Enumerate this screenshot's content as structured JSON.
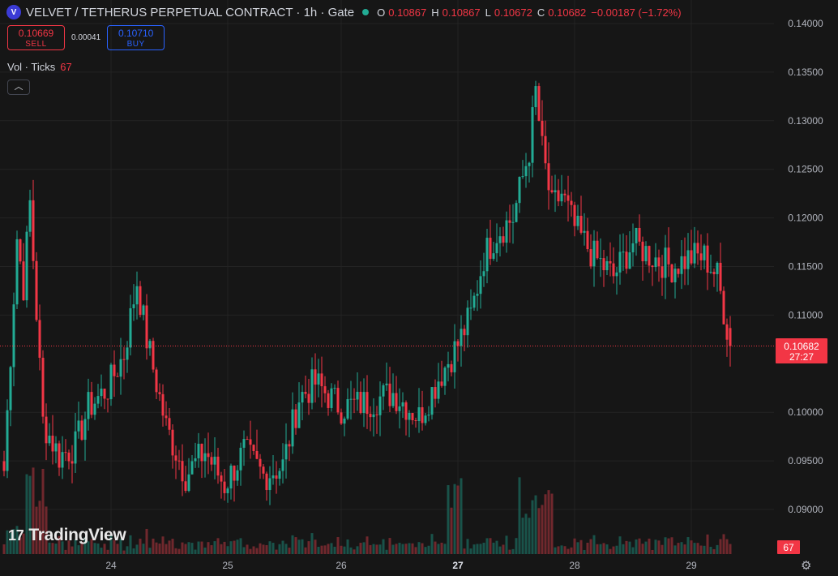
{
  "header": {
    "logo_text": "V",
    "title": "VELVET / TETHERUS PERPETUAL CONTRACT · 1h · Gate",
    "ohlc": [
      {
        "key": "O",
        "value": "0.10867"
      },
      {
        "key": "H",
        "value": "0.10867"
      },
      {
        "key": "L",
        "value": "0.10672"
      },
      {
        "key": "C",
        "value": "0.10682"
      }
    ],
    "change": "−0.00187 (−1.72%)"
  },
  "trade": {
    "sell_price": "0.10669",
    "sell_label": "SELL",
    "spread": "0.00041",
    "buy_price": "0.10710",
    "buy_label": "BUY"
  },
  "volume_legend": {
    "label": "Vol · Ticks",
    "value": "67"
  },
  "collapse_icon": "chevron-up-icon",
  "brand": {
    "mark": "17",
    "name": "TradingView"
  },
  "settings_icon": "gear-icon",
  "colors": {
    "up": "#22ab94",
    "down": "#f23645",
    "background": "#161616",
    "grid": "#232323"
  },
  "chart_data": {
    "type": "candlestick",
    "price_scale": {
      "ticks": [
        "0.14000",
        "0.13500",
        "0.13000",
        "0.12500",
        "0.12000",
        "0.11500",
        "0.11000",
        "0.10000",
        "0.09500",
        "0.09000"
      ],
      "ylim": [
        0.0855,
        0.1414
      ]
    },
    "time_axis": {
      "labels": [
        "24",
        "25",
        "26",
        "27",
        "28",
        "29"
      ],
      "bold": [
        "27"
      ]
    },
    "last_price": {
      "value": "0.10682",
      "countdown": "27:27"
    },
    "last_volume": "67",
    "keypoints": [
      {
        "t": 0,
        "p": 0.094
      },
      {
        "t": 4,
        "p": 0.118
      },
      {
        "t": 6,
        "p": 0.113
      },
      {
        "t": 8,
        "p": 0.1215
      },
      {
        "t": 12,
        "p": 0.099
      },
      {
        "t": 17,
        "p": 0.0955
      },
      {
        "t": 22,
        "p": 0.0965
      },
      {
        "t": 26,
        "p": 0.1005
      },
      {
        "t": 32,
        "p": 0.1025
      },
      {
        "t": 37,
        "p": 0.106
      },
      {
        "t": 41,
        "p": 0.1135
      },
      {
        "t": 44,
        "p": 0.1075
      },
      {
        "t": 50,
        "p": 0.0985
      },
      {
        "t": 56,
        "p": 0.0935
      },
      {
        "t": 62,
        "p": 0.096
      },
      {
        "t": 68,
        "p": 0.0925
      },
      {
        "t": 74,
        "p": 0.096
      },
      {
        "t": 80,
        "p": 0.0935
      },
      {
        "t": 86,
        "p": 0.0945
      },
      {
        "t": 91,
        "p": 0.1015
      },
      {
        "t": 96,
        "p": 0.103
      },
      {
        "t": 104,
        "p": 0.1005
      },
      {
        "t": 112,
        "p": 0.101
      },
      {
        "t": 120,
        "p": 0.102
      },
      {
        "t": 128,
        "p": 0.0995
      },
      {
        "t": 134,
        "p": 0.1035
      },
      {
        "t": 140,
        "p": 0.107
      },
      {
        "t": 144,
        "p": 0.11
      },
      {
        "t": 148,
        "p": 0.116
      },
      {
        "t": 152,
        "p": 0.1185
      },
      {
        "t": 157,
        "p": 0.12
      },
      {
        "t": 162,
        "p": 0.127
      },
      {
        "t": 164,
        "p": 0.133
      },
      {
        "t": 166,
        "p": 0.127
      },
      {
        "t": 169,
        "p": 0.121
      },
      {
        "t": 172,
        "p": 0.1225
      },
      {
        "t": 176,
        "p": 0.119
      },
      {
        "t": 182,
        "p": 0.116
      },
      {
        "t": 188,
        "p": 0.114
      },
      {
        "t": 194,
        "p": 0.1175
      },
      {
        "t": 200,
        "p": 0.116
      },
      {
        "t": 206,
        "p": 0.115
      },
      {
        "t": 212,
        "p": 0.116
      },
      {
        "t": 216,
        "p": 0.116
      },
      {
        "t": 220,
        "p": 0.114
      },
      {
        "t": 222,
        "p": 0.1105
      },
      {
        "t": 224,
        "p": 0.1068
      }
    ]
  }
}
